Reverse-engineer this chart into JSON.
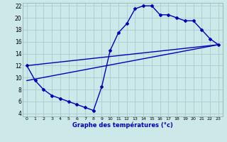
{
  "xlabel": "Graphe des températures (°c)",
  "bg_color": "#cce8e8",
  "grid_color": "#aacccc",
  "line_color": "#0000bb",
  "marker": "D",
  "markersize": 2,
  "linewidth": 1.0,
  "xlim": [
    -0.5,
    23.5
  ],
  "ylim": [
    3.5,
    22.5
  ],
  "xticks": [
    0,
    1,
    2,
    3,
    4,
    5,
    6,
    7,
    8,
    9,
    10,
    11,
    12,
    13,
    14,
    15,
    16,
    17,
    18,
    19,
    20,
    21,
    22,
    23
  ],
  "yticks": [
    4,
    6,
    8,
    10,
    12,
    14,
    16,
    18,
    20,
    22
  ],
  "main_x": [
    0,
    1,
    2,
    3,
    4,
    5,
    6,
    7,
    8,
    9,
    10,
    11,
    12,
    13,
    14,
    15,
    16,
    17,
    18,
    19,
    20,
    21,
    22,
    23
  ],
  "main_y": [
    12,
    9.5,
    8,
    7,
    6.5,
    6,
    5.5,
    5,
    4.5,
    8.5,
    14.5,
    17.5,
    19,
    21.5,
    22,
    22,
    20.5,
    20.5,
    20,
    19.5,
    19.5,
    18,
    16.5,
    15.5
  ],
  "trend1_x": [
    0,
    23
  ],
  "trend1_y": [
    9.5,
    15.5
  ],
  "trend2_x": [
    0,
    23
  ],
  "trend2_y": [
    12.0,
    15.5
  ]
}
